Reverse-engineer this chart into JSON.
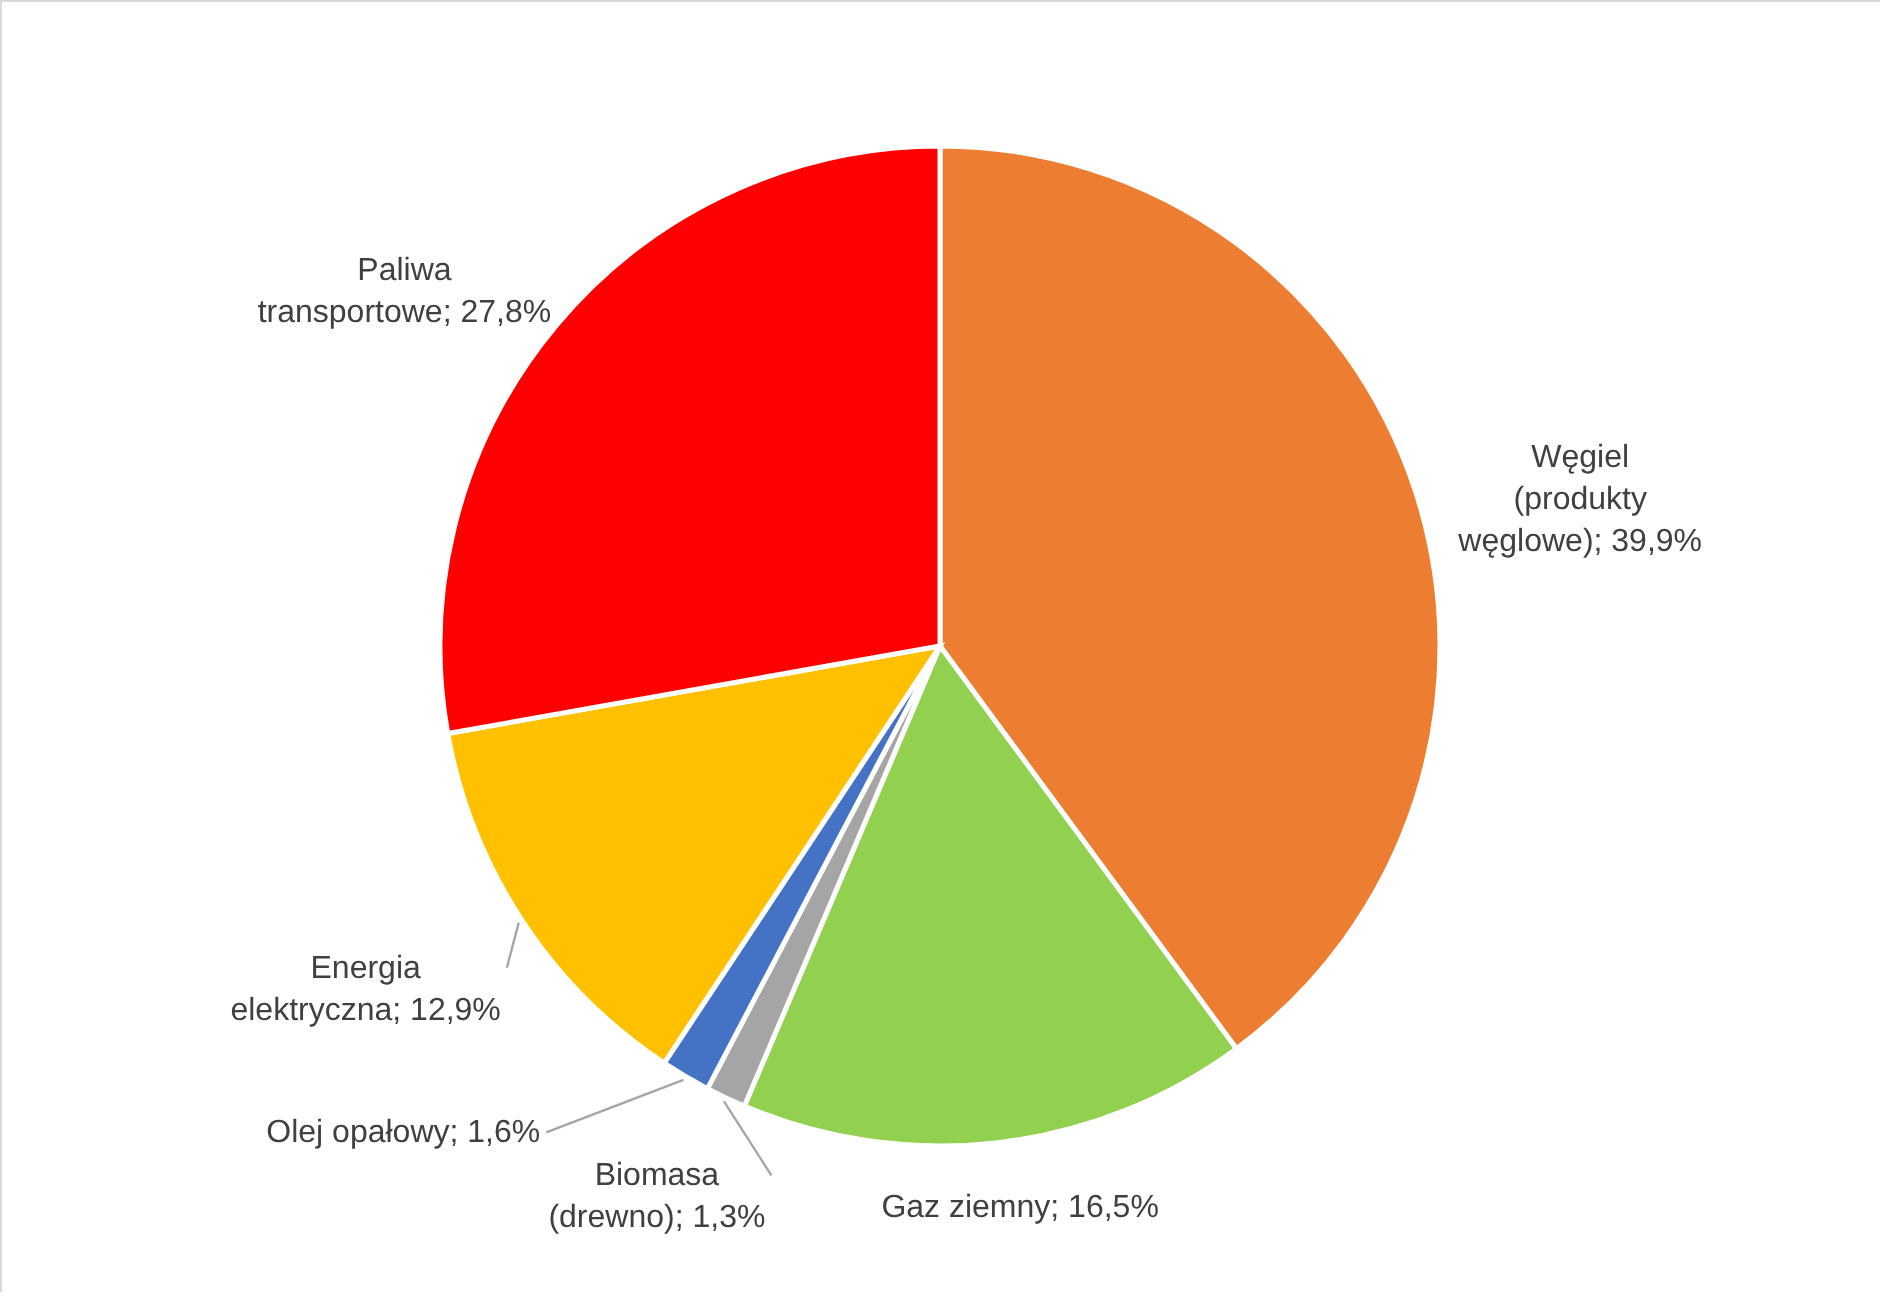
{
  "chart_data": {
    "type": "pie",
    "categories": [
      "Węgiel (produkty węglowe)",
      "Gaz ziemny",
      "Biomasa (drewno)",
      "Olej opałowy",
      "Energia elektryczna",
      "Paliwa transportowe"
    ],
    "values": [
      39.9,
      16.5,
      1.3,
      1.6,
      12.9,
      27.8
    ],
    "colors": [
      "#ed7d31",
      "#92d050",
      "#a5a5a5",
      "#4472c4",
      "#ffc000",
      "#ff0000"
    ],
    "value_labels": [
      "39,9%",
      "16,5%",
      "1,3%",
      "1,6%",
      "12,9%",
      "27,8%"
    ]
  }
}
